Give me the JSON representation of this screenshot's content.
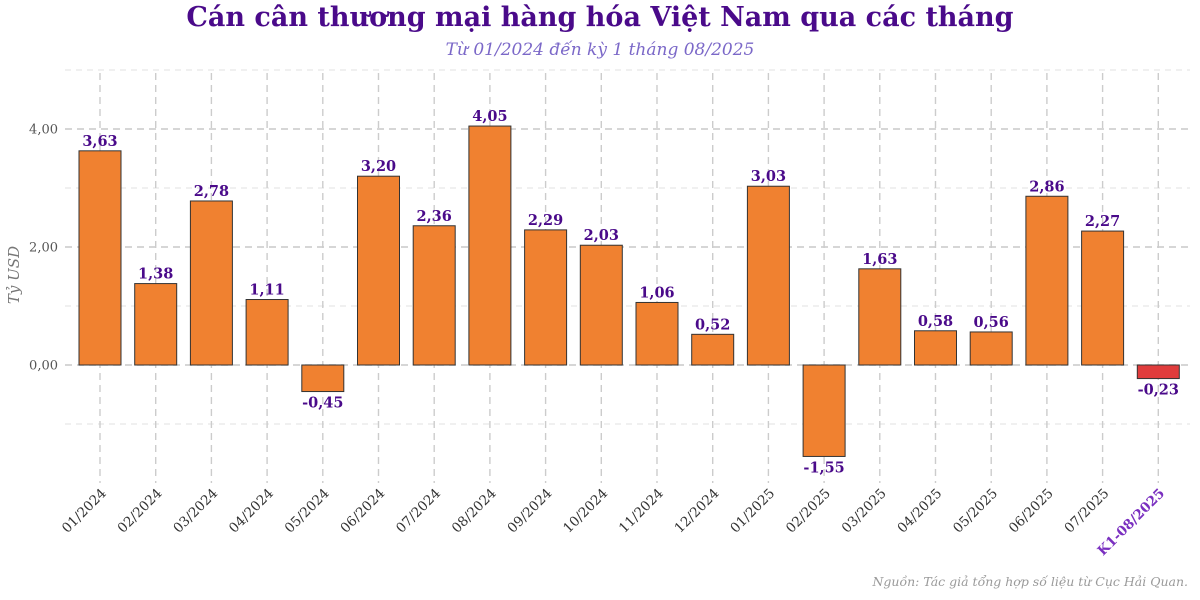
{
  "header": {
    "title": "Cán cân thương mại hàng hóa Việt Nam qua các tháng",
    "subtitle": "Từ 01/2024 đến kỳ 1 tháng 08/2025"
  },
  "footer": {
    "source": "Nguồn: Tác giả tổng hợp số liệu từ Cục Hải Quan."
  },
  "chart_data": {
    "type": "bar",
    "categories": [
      "01/2024",
      "02/2024",
      "03/2024",
      "04/2024",
      "05/2024",
      "06/2024",
      "07/2024",
      "08/2024",
      "09/2024",
      "10/2024",
      "11/2024",
      "12/2024",
      "01/2025",
      "02/2025",
      "03/2025",
      "04/2025",
      "05/2025",
      "06/2025",
      "07/2025",
      "K1-08/2025"
    ],
    "values": [
      3.63,
      1.38,
      2.78,
      1.11,
      -0.45,
      3.2,
      2.36,
      4.05,
      2.29,
      2.03,
      1.06,
      0.52,
      3.03,
      -1.55,
      1.63,
      0.58,
      0.56,
      2.86,
      2.27,
      -0.23
    ],
    "data_labels": [
      "3,63",
      "1,38",
      "2,78",
      "1,11",
      "-0,45",
      "3,20",
      "2,36",
      "4,05",
      "2,29",
      "2,03",
      "1,06",
      "0,52",
      "3,03",
      "-1,55",
      "1,63",
      "0,58",
      "0,56",
      "2,86",
      "2,27",
      "-0,23"
    ],
    "ylabel": "Tỷ USD",
    "xlabel": "",
    "ylim": [
      -2.0,
      5.0
    ],
    "yticks": [
      0,
      2,
      4
    ],
    "ytick_labels": [
      "0,00",
      "2,00",
      "4,00"
    ],
    "grid": true,
    "colors": {
      "bar": "#f08130",
      "highlight_bar": "#e03c3c",
      "label": "#4a0a8a",
      "highlight_label": "#7a2fc0",
      "edge": "#333333"
    },
    "highlight_index": 19
  }
}
